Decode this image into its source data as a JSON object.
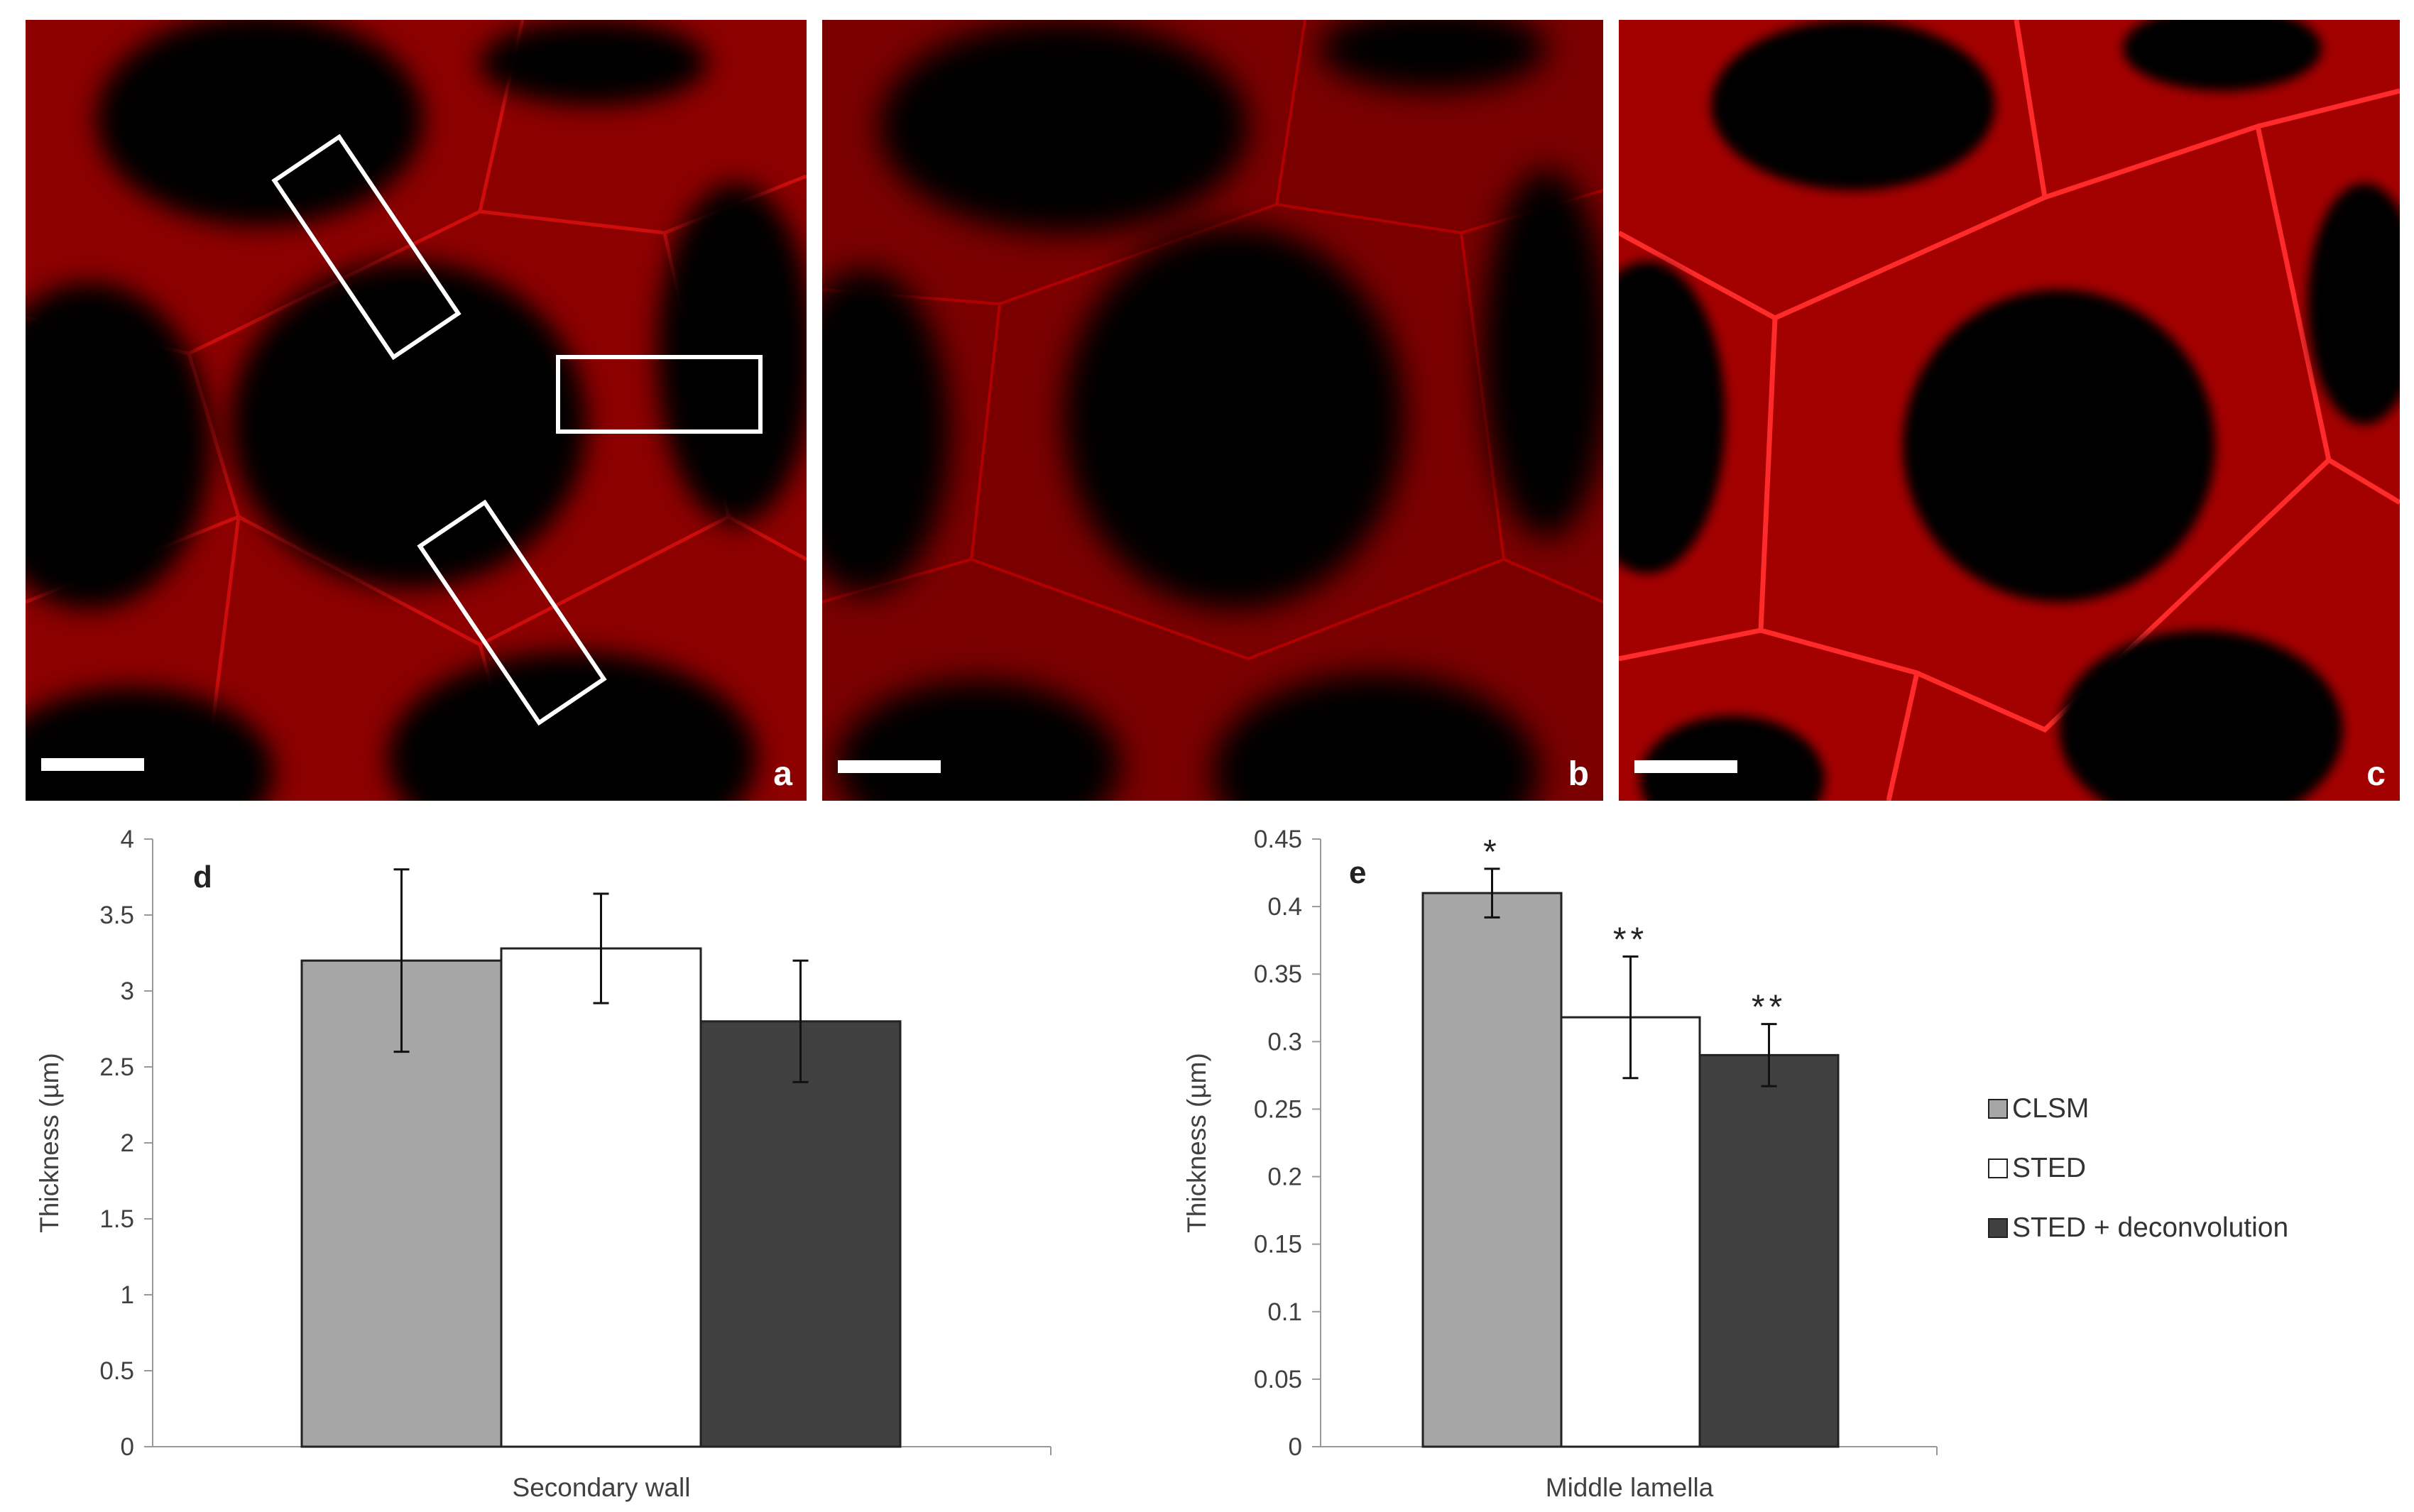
{
  "micrographs": [
    {
      "label": "a",
      "roi_boxes": 3,
      "scale_bar": true
    },
    {
      "label": "b",
      "roi_boxes": 0,
      "scale_bar": true
    },
    {
      "label": "c",
      "roi_boxes": 0,
      "scale_bar": true
    }
  ],
  "colors": {
    "stain": "#d40000",
    "background": "#000000",
    "CLSM": "#a6a6a6",
    "STED": "#ffffff",
    "STED + deconvolution": "#404040"
  },
  "legend": [
    "CLSM",
    "STED",
    "STED + deconvolution"
  ],
  "chart_data": [
    {
      "type": "bar",
      "panel": "d",
      "categories": [
        "Secondary wall"
      ],
      "xlabel": "Secondary wall",
      "ylabel": "Thickness (µm)",
      "ylim": [
        0,
        4
      ],
      "yticks": [
        "0",
        "0.5",
        "1",
        "1.5",
        "2",
        "2.5",
        "3",
        "3.5",
        "4"
      ],
      "series": [
        {
          "name": "CLSM",
          "values": [
            3.2
          ],
          "error": [
            0.6
          ]
        },
        {
          "name": "STED",
          "values": [
            3.28
          ],
          "error": [
            0.36
          ]
        },
        {
          "name": "STED + deconvolution",
          "values": [
            2.8
          ],
          "error": [
            0.4
          ]
        }
      ],
      "annotations": [
        "",
        "",
        ""
      ]
    },
    {
      "type": "bar",
      "panel": "e",
      "categories": [
        "Middle lamella"
      ],
      "xlabel": "Middle lamella",
      "ylabel": "Thickness (µm)",
      "ylim": [
        0,
        0.45
      ],
      "yticks": [
        "0",
        "0.05",
        "0.1",
        "0.15",
        "0.2",
        "0.25",
        "0.3",
        "0.35",
        "0.4",
        "0.45"
      ],
      "series": [
        {
          "name": "CLSM",
          "values": [
            0.41
          ],
          "error": [
            0.018
          ]
        },
        {
          "name": "STED",
          "values": [
            0.318
          ],
          "error": [
            0.045
          ]
        },
        {
          "name": "STED + deconvolution",
          "values": [
            0.29
          ],
          "error": [
            0.023
          ]
        }
      ],
      "annotations": [
        "*",
        "**",
        "**"
      ]
    }
  ]
}
